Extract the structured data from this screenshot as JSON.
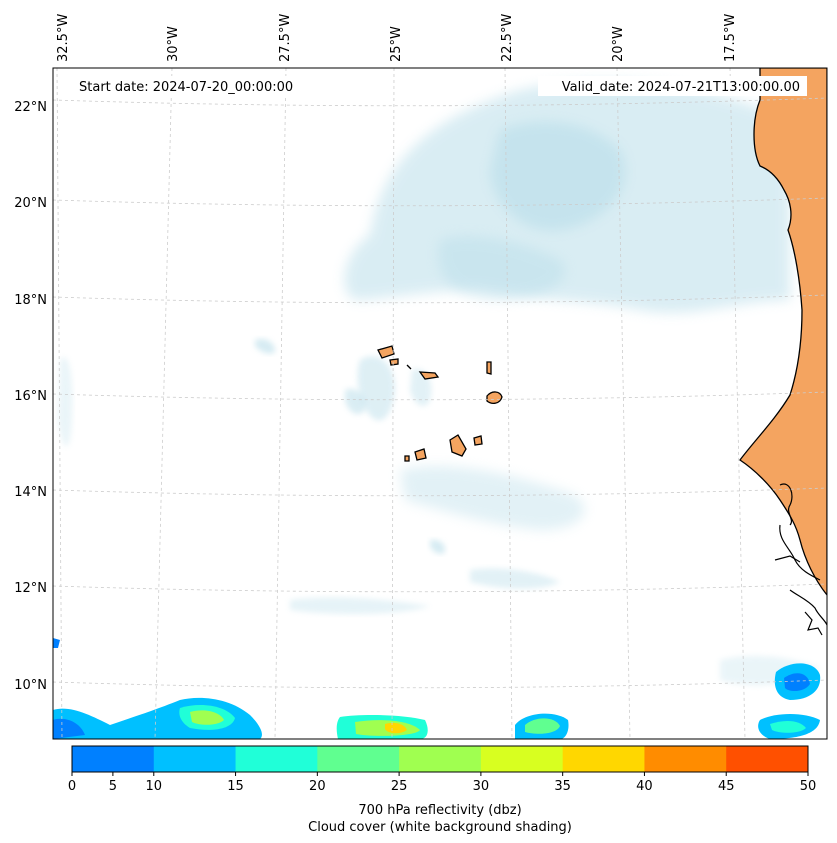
{
  "map": {
    "start_label": "Start date: 2024-07-20_00:00:00",
    "valid_label": "Valid_date: 2024-07-21T13:00:00.00",
    "lon_labels": [
      "32.5°W",
      "30°W",
      "27.5°W",
      "25°W",
      "22.5°W",
      "20°W",
      "17.5°W"
    ],
    "lat_labels": [
      "22°N",
      "20°N",
      "18°N",
      "16°N",
      "14°N",
      "12°N",
      "10°N"
    ],
    "land_color": "#f4a460",
    "cloud_color": "#add8e6"
  },
  "colorbar": {
    "ticks": [
      "0",
      "5",
      "10",
      "15",
      "20",
      "25",
      "30",
      "35",
      "40",
      "45",
      "50"
    ],
    "colors": [
      "#0080ff",
      "#00c0ff",
      "#20ffd8",
      "#60ff90",
      "#a0ff50",
      "#d8ff20",
      "#ffd700",
      "#ff8c00",
      "#ff5000"
    ],
    "label_line1": "700 hPa reflectivity (dbz)",
    "label_line2": "Cloud cover (white background shading)"
  }
}
